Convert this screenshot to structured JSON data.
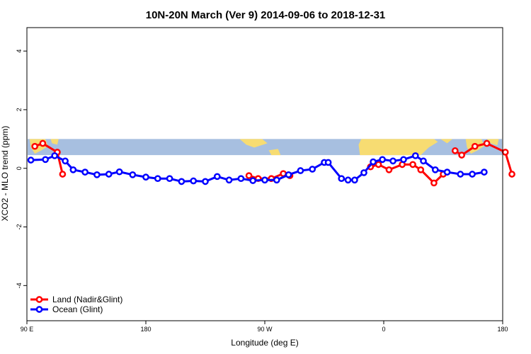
{
  "chart_data": {
    "type": "line",
    "title": "10N-20N March (Ver 9)   2014-09-06 to 2018-12-31",
    "xlabel": "Longitude (deg E)",
    "ylabel": "XCO2 - MLO trend (ppm)",
    "xlim": [
      90,
      450
    ],
    "ylim": [
      -5.2,
      4.8
    ],
    "x_ticks": [
      {
        "value": 90,
        "label": "90 E"
      },
      {
        "value": 180,
        "label": "180"
      },
      {
        "value": 270,
        "label": "90 W"
      },
      {
        "value": 360,
        "label": "0"
      },
      {
        "value": 450,
        "label": "180"
      }
    ],
    "y_ticks": [
      {
        "value": -4,
        "label": "-4"
      },
      {
        "value": -2,
        "label": "-2"
      },
      {
        "value": 0,
        "label": "0"
      },
      {
        "value": 2,
        "label": "2"
      },
      {
        "value": 4,
        "label": "4"
      }
    ],
    "grid": false,
    "legend_position": "bottom-left",
    "land_mask_band": {
      "y_range": [
        0.45,
        1.0
      ],
      "ocean_color": "#a7bfe0",
      "land_color": "#f7dc72"
    },
    "series": [
      {
        "name": "Land (Nadir&Glint)",
        "color": "#ff0000",
        "segments": [
          [
            [
              96,
              0.75
            ],
            [
              102,
              0.85
            ],
            [
              113,
              0.55
            ],
            [
              117,
              -0.2
            ]
          ],
          [
            [
              258,
              -0.25
            ],
            [
              265,
              -0.35
            ],
            [
              275,
              -0.35
            ],
            [
              284,
              -0.18
            ],
            [
              289,
              -0.25
            ]
          ],
          [
            [
              350,
              0.05
            ],
            [
              356,
              0.13
            ],
            [
              364,
              -0.05
            ],
            [
              374,
              0.13
            ],
            [
              382,
              0.13
            ],
            [
              388,
              -0.05
            ],
            [
              398,
              -0.5
            ],
            [
              405,
              -0.2
            ]
          ],
          [
            [
              414,
              0.6
            ],
            [
              419,
              0.45
            ],
            [
              429,
              0.75
            ],
            [
              438,
              0.85
            ],
            [
              452,
              0.55
            ],
            [
              457,
              -0.2
            ]
          ]
        ]
      },
      {
        "name": "Ocean (Glint)",
        "color": "#0000ff",
        "points": [
          [
            93,
            0.28
          ],
          [
            104,
            0.3
          ],
          [
            111,
            0.43
          ],
          [
            119,
            0.25
          ],
          [
            125,
            -0.05
          ],
          [
            134,
            -0.13
          ],
          [
            143,
            -0.22
          ],
          [
            152,
            -0.2
          ],
          [
            160,
            -0.12
          ],
          [
            170,
            -0.22
          ],
          [
            180,
            -0.3
          ],
          [
            189,
            -0.35
          ],
          [
            198,
            -0.35
          ],
          [
            207,
            -0.45
          ],
          [
            216,
            -0.43
          ],
          [
            225,
            -0.45
          ],
          [
            234,
            -0.28
          ],
          [
            243,
            -0.4
          ],
          [
            252,
            -0.35
          ],
          [
            261,
            -0.42
          ],
          [
            270,
            -0.4
          ],
          [
            279,
            -0.4
          ],
          [
            288,
            -0.22
          ],
          [
            297,
            -0.08
          ],
          [
            306,
            -0.03
          ],
          [
            315,
            0.2
          ],
          [
            318,
            0.2
          ],
          [
            328,
            -0.35
          ],
          [
            333,
            -0.4
          ],
          [
            338,
            -0.4
          ],
          [
            345,
            -0.15
          ],
          [
            352,
            0.22
          ],
          [
            359,
            0.3
          ],
          [
            367,
            0.25
          ],
          [
            375,
            0.3
          ],
          [
            384,
            0.43
          ],
          [
            390,
            0.25
          ],
          [
            399,
            -0.05
          ],
          [
            408,
            -0.13
          ],
          [
            418,
            -0.2
          ],
          [
            427,
            -0.2
          ],
          [
            436,
            -0.13
          ]
        ]
      }
    ]
  }
}
